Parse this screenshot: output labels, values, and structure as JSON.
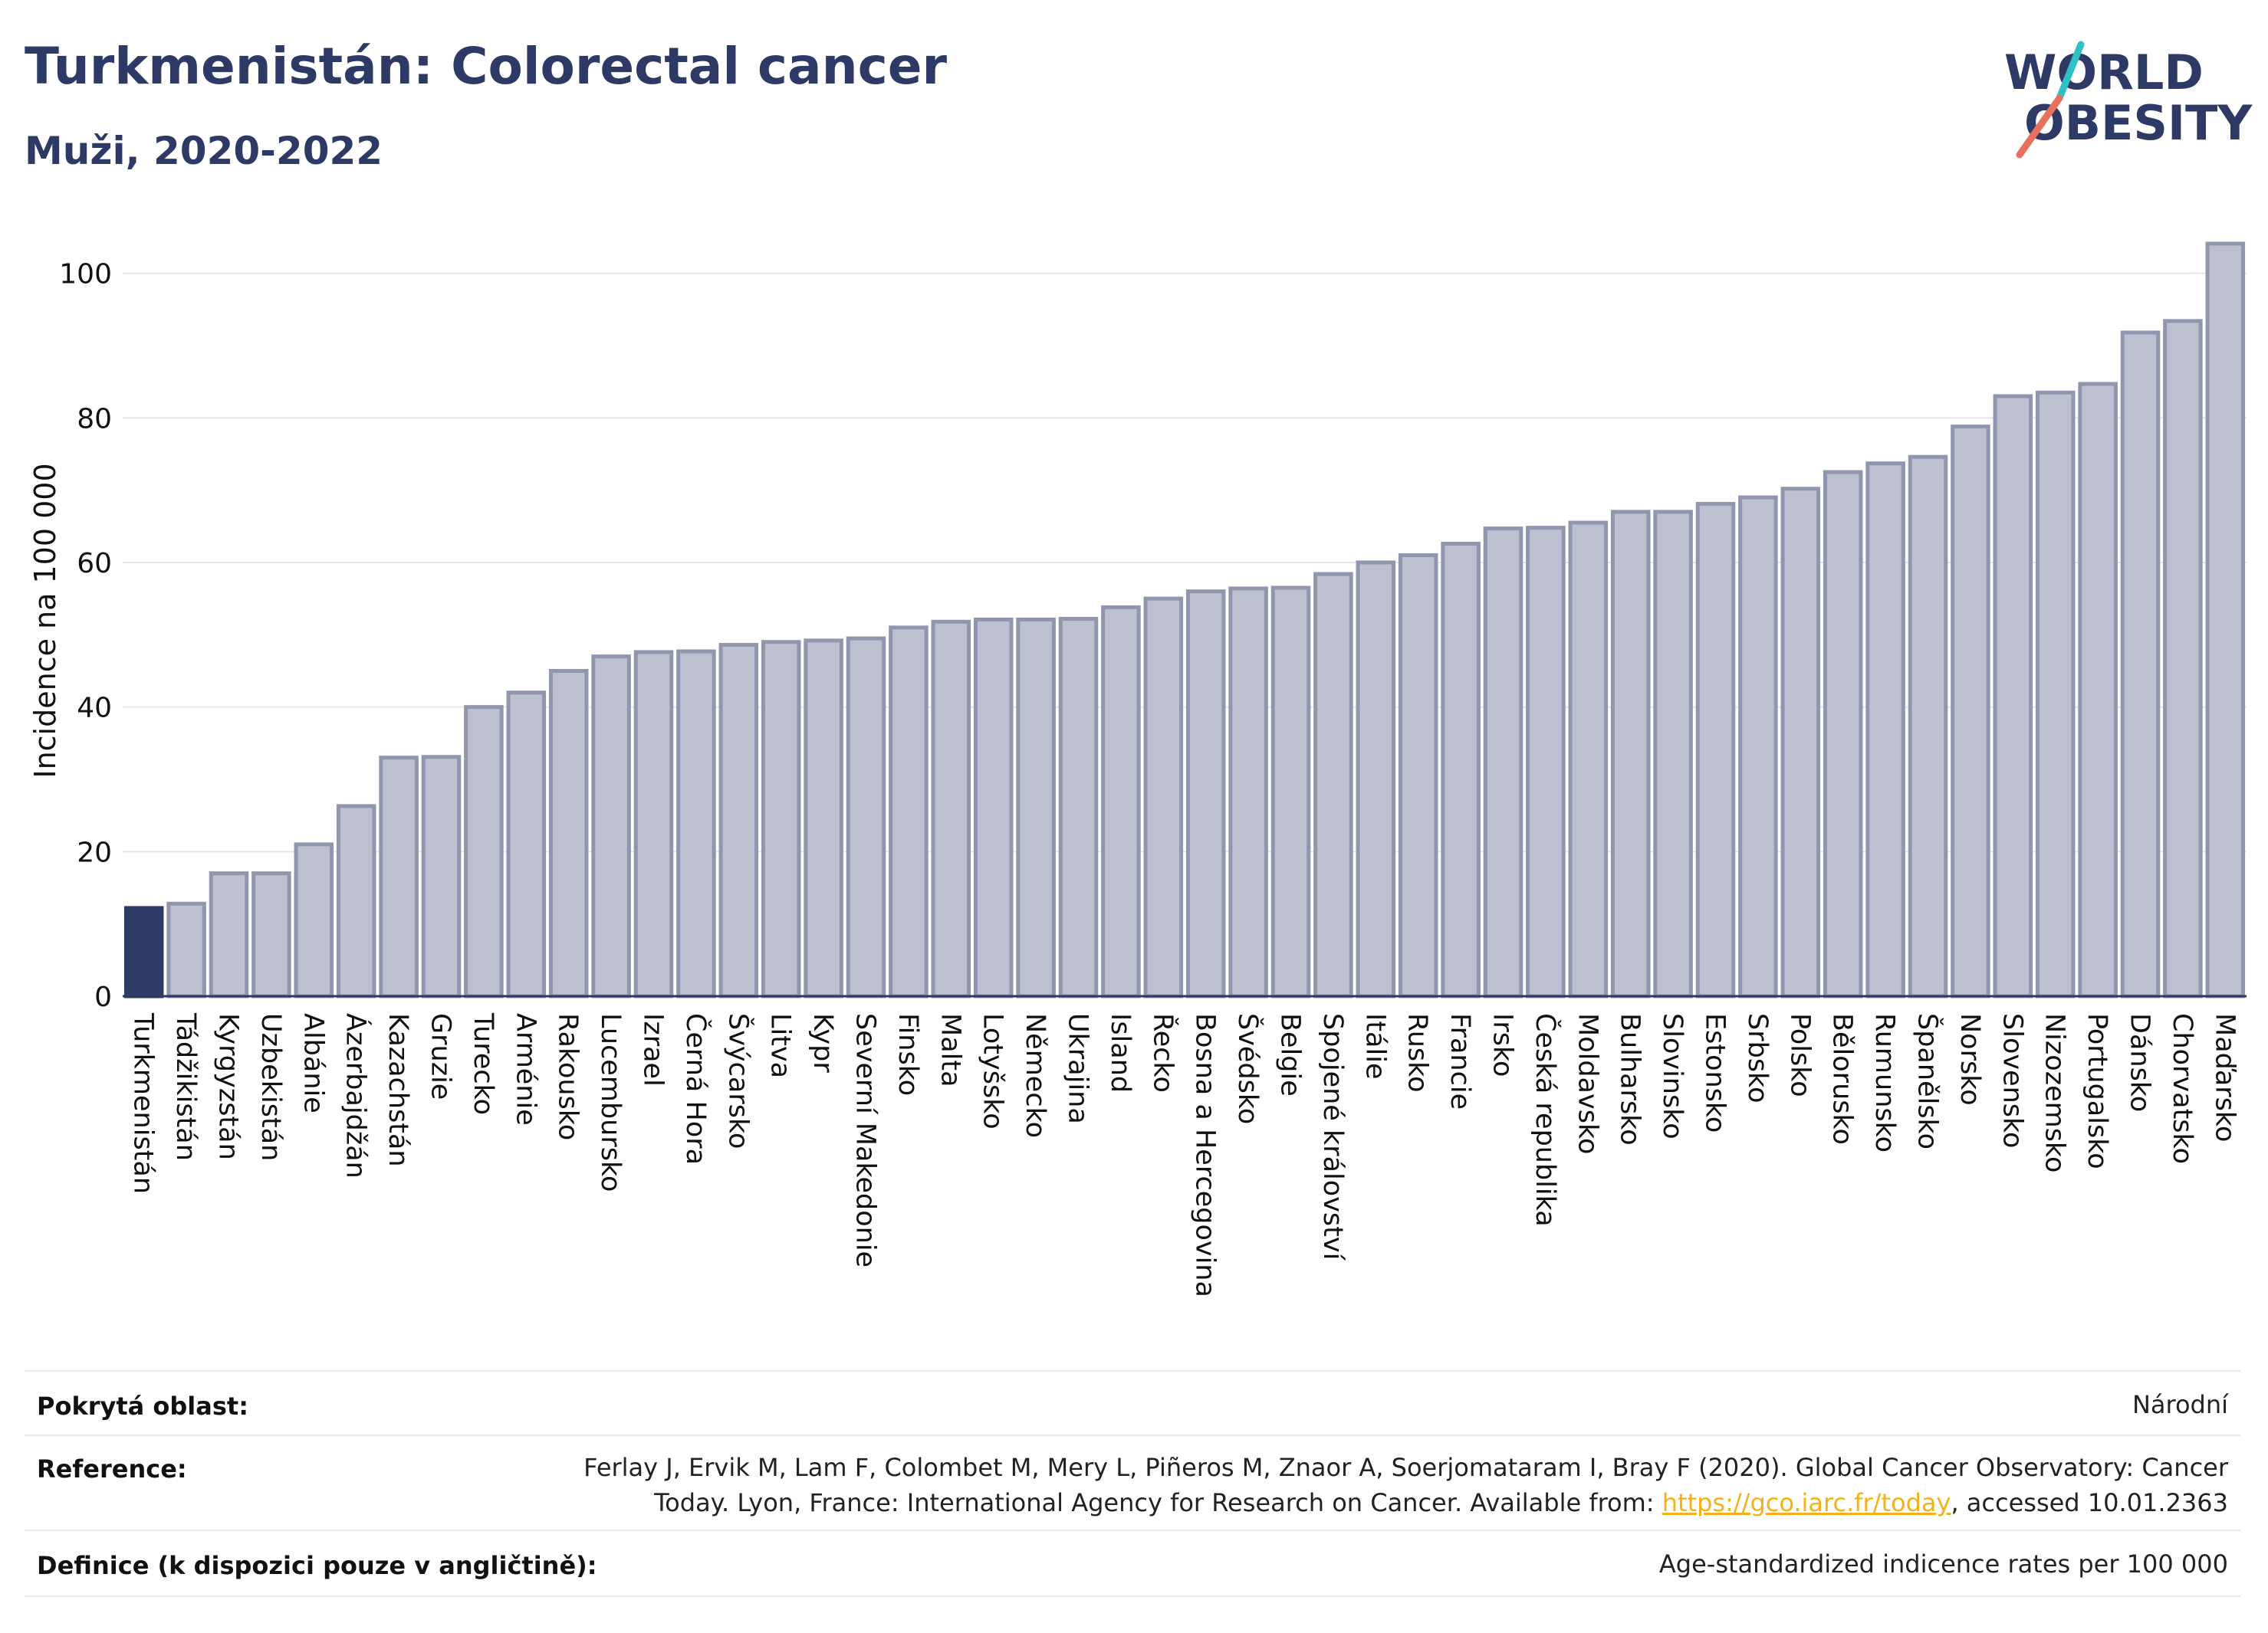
{
  "header": {
    "title": "Turkmenistán: Colorectal cancer",
    "subtitle": "Muži, 2020-2022"
  },
  "logo": {
    "line1": "WORLD",
    "line2": "OBESITY",
    "accent_teal": "#2fc1c6",
    "accent_coral": "#e8705f"
  },
  "colors": {
    "highlight": "#2d3a66",
    "bar_fill": "#bcc0cf",
    "bar_stroke": "#8f96ad",
    "title": "#2d3a66",
    "link": "#f2b21b"
  },
  "chart_data": {
    "type": "bar",
    "ylabel": "Incidence na 100 000",
    "xlabel": "",
    "ylim": [
      0,
      106
    ],
    "yticks": [
      0,
      20,
      40,
      60,
      80,
      100
    ],
    "grid": true,
    "highlight": "Turkmenistán",
    "categories": [
      "Turkmenistán",
      "Tádžikistán",
      "Kyrgyzstán",
      "Uzbekistán",
      "Albánie",
      "Ázerbajdžán",
      "Kazachstán",
      "Gruzie",
      "Turecko",
      "Arménie",
      "Rakousko",
      "Lucembursko",
      "Izrael",
      "Černá Hora",
      "Švýcarsko",
      "Litva",
      "Kypr",
      "Severní Makedonie",
      "Finsko",
      "Malta",
      "Lotyšsko",
      "Německo",
      "Ukrajina",
      "Island",
      "Řecko",
      "Bosna a Hercegovina",
      "Švédsko",
      "Belgie",
      "Spojené království",
      "Itálie",
      "Rusko",
      "Francie",
      "Irsko",
      "Česká republika",
      "Moldavsko",
      "Bulharsko",
      "Slovinsko",
      "Estonsko",
      "Srbsko",
      "Polsko",
      "Bělorusko",
      "Rumunsko",
      "Španělsko",
      "Norsko",
      "Slovensko",
      "Nizozemsko",
      "Portugalsko",
      "Dánsko",
      "Chorvatsko",
      "Maďarsko"
    ],
    "values": [
      12.2,
      12.8,
      17.0,
      17.0,
      21.0,
      26.3,
      33.0,
      33.1,
      40.0,
      42.0,
      45.0,
      47.0,
      47.6,
      47.7,
      48.6,
      49.0,
      49.2,
      49.5,
      51.0,
      51.8,
      52.1,
      52.1,
      52.2,
      53.8,
      55.0,
      56.0,
      56.4,
      56.5,
      58.4,
      60.0,
      61.0,
      62.6,
      64.7,
      64.8,
      65.5,
      67.0,
      67.0,
      68.1,
      69.0,
      70.2,
      72.5,
      73.7,
      74.6,
      78.8,
      83.0,
      83.5,
      84.7,
      91.8,
      93.4,
      104.1
    ]
  },
  "info": {
    "coverage_label": "Pokrytá oblast:",
    "coverage_value": "Národní",
    "reference_label": "Reference:",
    "reference_line1": "Ferlay J, Ervik M, Lam F, Colombet M, Mery L, Piñeros M, Znaor A, Soerjomataram I, Bray F (2020). Global Cancer Observatory: Cancer",
    "reference_line2_pre": "Today. Lyon, France: International Agency for Research on Cancer. Available from: ",
    "reference_link": "https://gco.iarc.fr/today",
    "reference_line2_post": ", accessed 10.01.2363",
    "definition_label": "Definice (k dispozici pouze v angličtině):",
    "definition_value": "Age-standardized indicence rates per 100 000"
  }
}
